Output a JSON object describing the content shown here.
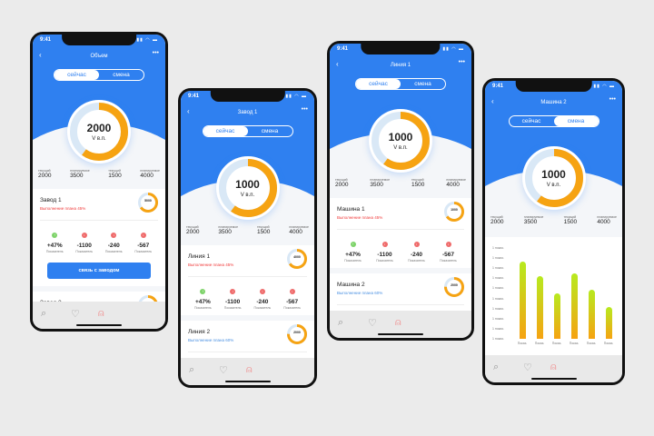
{
  "colors": {
    "primary": "#2f80f0",
    "accent": "#f6a312",
    "track": "#d9e8f6",
    "good": "#7ed36a",
    "bad": "#ef6b6b",
    "plan_bad": "#f03a3a",
    "plan_good": "#4a90e2"
  },
  "status_time": "9:41",
  "phones": [
    {
      "title": "Объем",
      "tabs": [
        "сейчас",
        "смена"
      ],
      "active_tab": 0,
      "value": "2000",
      "unit": "V в.п.",
      "progress": 0.6,
      "stats": [
        {
          "label": "текущий",
          "value": "2000"
        },
        {
          "label": "планируемое",
          "value": "3500"
        },
        {
          "label": "текущий",
          "value": "1500"
        },
        {
          "label": "планируемое",
          "value": "4000"
        }
      ],
      "cards": [
        {
          "name": "Завод 1",
          "plan": "Выполнение плана 45%",
          "plan_state": "bad",
          "mini_value": "5000",
          "mini_unit": "V в.п.",
          "mini_progress": 0.65,
          "metrics": [
            {
              "value": "+47%",
              "label": "Показатель",
              "state": "good"
            },
            {
              "value": "-1100",
              "label": "Показатель",
              "state": "bad"
            },
            {
              "value": "-240",
              "label": "Показатель",
              "state": "bad"
            },
            {
              "value": "-567",
              "label": "Показатель",
              "state": "bad"
            }
          ],
          "button": "связь с заводом"
        },
        {
          "name": "Завод 2",
          "plan": "Выполнение плана 60%",
          "plan_state": "good",
          "mini_value": "2000",
          "mini_unit": "V в.п.",
          "mini_progress": 0.75,
          "metrics": []
        }
      ]
    },
    {
      "title": "Завод 1",
      "tabs": [
        "сейчас",
        "смена"
      ],
      "active_tab": 0,
      "value": "1000",
      "unit": "V в.п.",
      "progress": 0.6,
      "stats": [
        {
          "label": "текущий",
          "value": "2000"
        },
        {
          "label": "планируемое",
          "value": "3500"
        },
        {
          "label": "текущий",
          "value": "1500"
        },
        {
          "label": "планируемое",
          "value": "4000"
        }
      ],
      "cards": [
        {
          "name": "Линия 1",
          "plan": "Выполнение плана 45%",
          "plan_state": "bad",
          "mini_value": "4000",
          "mini_unit": "V в.п.",
          "mini_progress": 0.65,
          "metrics": [
            {
              "value": "+47%",
              "label": "Показатель",
              "state": "good"
            },
            {
              "value": "-1100",
              "label": "Показатель",
              "state": "bad"
            },
            {
              "value": "-240",
              "label": "Показатель",
              "state": "bad"
            },
            {
              "value": "-567",
              "label": "Показатель",
              "state": "bad"
            }
          ]
        },
        {
          "name": "Линия 2",
          "plan": "Выполнение плана 60%",
          "plan_state": "good",
          "mini_value": "2000",
          "mini_unit": "V в.п.",
          "mini_progress": 0.75,
          "metrics": [
            {
              "value": "+47%",
              "label": "Показатель",
              "state": "good"
            },
            {
              "value": "+1100",
              "label": "Показатель",
              "state": "good"
            },
            {
              "value": "-240",
              "label": "Показатель",
              "state": "good"
            },
            {
              "value": "-567",
              "label": "Показатель",
              "state": "bad"
            }
          ]
        }
      ]
    },
    {
      "title": "Линия 1",
      "tabs": [
        "сейчас",
        "смена"
      ],
      "active_tab": 0,
      "value": "1000",
      "unit": "V в.п.",
      "progress": 0.6,
      "stats": [
        {
          "label": "текущий",
          "value": "2000"
        },
        {
          "label": "планируемое",
          "value": "3500"
        },
        {
          "label": "текущий",
          "value": "1500"
        },
        {
          "label": "планируемое",
          "value": "4000"
        }
      ],
      "cards": [
        {
          "name": "Машина 1",
          "plan": "Выполнение плана 45%",
          "plan_state": "bad",
          "mini_value": "1000",
          "mini_unit": "V в.п.",
          "mini_progress": 0.65,
          "metrics": [
            {
              "value": "+47%",
              "label": "Показатель",
              "state": "good"
            },
            {
              "value": "-1100",
              "label": "Показатель",
              "state": "bad"
            },
            {
              "value": "-240",
              "label": "Показатель",
              "state": "bad"
            },
            {
              "value": "-567",
              "label": "Показатель",
              "state": "bad"
            }
          ]
        },
        {
          "name": "Машина 2",
          "plan": "Выполнение плана 60%",
          "plan_state": "good",
          "mini_value": "2000",
          "mini_unit": "V в.п.",
          "mini_progress": 0.75,
          "metrics": [
            {
              "value": "+47%",
              "label": "Показатель",
              "state": "good"
            },
            {
              "value": "+1100",
              "label": "Показатель",
              "state": "good"
            },
            {
              "value": "-240",
              "label": "Показатель",
              "state": "good"
            },
            {
              "value": "-567",
              "label": "Показатель",
              "state": "bad"
            }
          ]
        }
      ]
    },
    {
      "title": "Машина 2",
      "tabs": [
        "сейчас",
        "смена"
      ],
      "active_tab": 1,
      "value": "1000",
      "unit": "V в.п.",
      "progress": 0.6,
      "stats": [
        {
          "label": "текущий",
          "value": "2000"
        },
        {
          "label": "планируемое",
          "value": "3500"
        },
        {
          "label": "текущий",
          "value": "1500"
        },
        {
          "label": "планируемое",
          "value": "4000"
        }
      ],
      "chart_data": {
        "type": "bar",
        "y_tick_labels": [
          "1 показ.",
          "1 показ.",
          "1 показ.",
          "1 показ.",
          "1 показ.",
          "1 показ.",
          "1 показ.",
          "1 показ.",
          "1 показ.",
          "1 показ."
        ],
        "categories": [
          "Показ.",
          "Показ.",
          "Показ.",
          "Показ.",
          "Показ.",
          "Показ."
        ],
        "values": [
          0.85,
          0.69,
          0.5,
          0.72,
          0.54,
          0.35
        ]
      }
    }
  ],
  "icons": {
    "back": "chevron-left-icon",
    "more": "more-dots-icon",
    "search": "search-icon",
    "heart": "heart-icon",
    "profile": "user-icon"
  }
}
